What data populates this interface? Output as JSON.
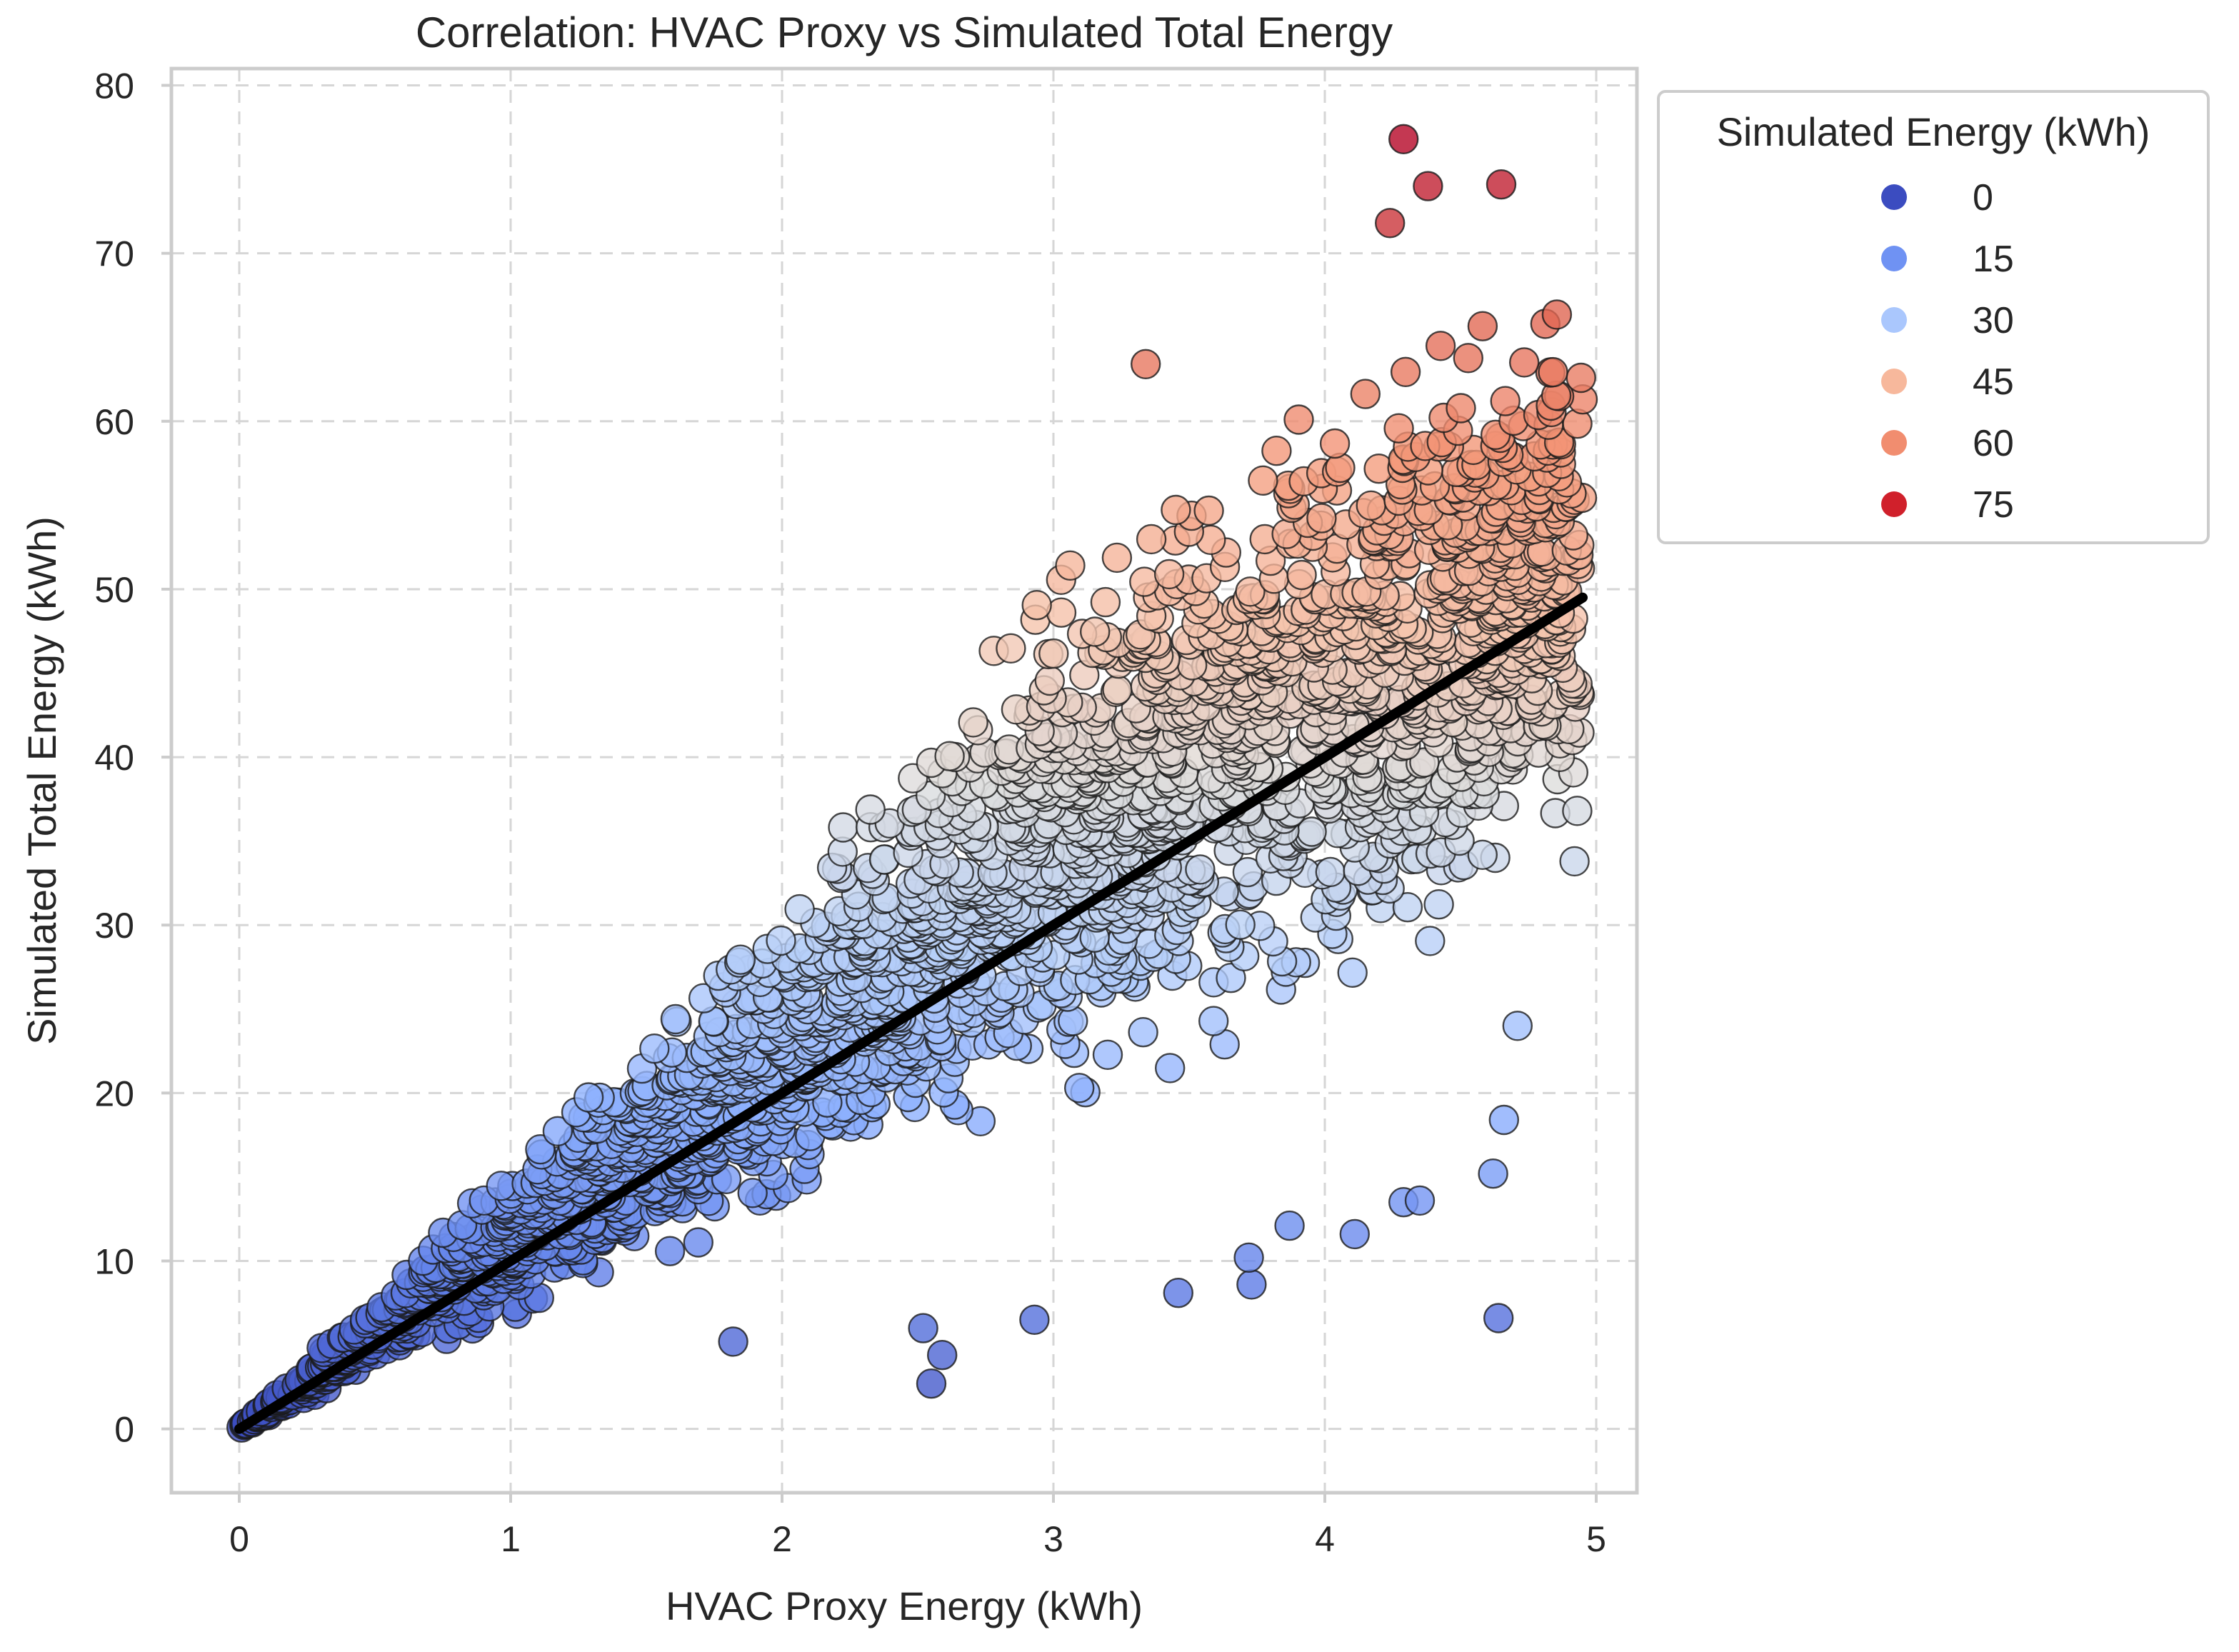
{
  "chart_data": {
    "type": "scatter",
    "title": "Correlation: HVAC Proxy vs Simulated Total Energy",
    "xlabel": "HVAC Proxy Energy (kWh)",
    "ylabel": "Simulated Total Energy (kWh)",
    "xlim": [
      -0.25,
      5.15
    ],
    "ylim": [
      -3.8,
      81
    ],
    "xticks": [
      0,
      1,
      2,
      3,
      4,
      5
    ],
    "yticks": [
      0,
      10,
      20,
      30,
      40,
      50,
      60,
      70,
      80
    ],
    "grid": true,
    "colormap": "coolwarm",
    "color_by": "Simulated Total Energy (kWh)",
    "color_range": [
      0,
      77
    ],
    "legend": {
      "title": "Simulated Energy (kWh)",
      "placement": "outside top-right",
      "entries": [
        {
          "label": "0",
          "color": "#3b4cc0"
        },
        {
          "label": "15",
          "color": "#6f92f3"
        },
        {
          "label": "30",
          "color": "#aac7fd"
        },
        {
          "label": "45",
          "color": "#f7b89c"
        },
        {
          "label": "60",
          "color": "#f18d6f"
        },
        {
          "label": "75",
          "color": "#d0202b"
        }
      ]
    },
    "trend_line": {
      "color": "#000000",
      "x": [
        0,
        4.95
      ],
      "y": [
        0,
        49.5
      ]
    },
    "cloud": {
      "description_points": 2600,
      "x_max": 4.95,
      "lower_slope_at_x": [
        [
          0,
          0
        ],
        [
          1,
          3.5
        ],
        [
          2,
          7
        ],
        [
          3,
          10.5
        ],
        [
          4,
          14
        ],
        [
          4.8,
          24
        ]
      ],
      "upper_slope_at_x": [
        [
          0,
          0
        ],
        [
          1,
          17
        ],
        [
          2,
          33
        ],
        [
          3,
          53
        ],
        [
          4,
          66
        ],
        [
          4.7,
          70
        ]
      ]
    },
    "series": [
      {
        "values": [
          {
            "x": 4.29,
            "y": 76.8
          },
          {
            "x": 4.65,
            "y": 74.1
          },
          {
            "x": 4.38,
            "y": 74.0
          },
          {
            "x": 4.24,
            "y": 71.8
          },
          {
            "x": 3.34,
            "y": 63.4
          },
          {
            "x": 4.95,
            "y": 61.3
          },
          {
            "x": 4.64,
            "y": 6.6
          },
          {
            "x": 2.55,
            "y": 2.7
          },
          {
            "x": 2.59,
            "y": 4.4
          },
          {
            "x": 2.52,
            "y": 6.0
          },
          {
            "x": 2.93,
            "y": 6.5
          },
          {
            "x": 1.82,
            "y": 5.2
          },
          {
            "x": 3.46,
            "y": 8.1
          },
          {
            "x": 3.73,
            "y": 8.6
          },
          {
            "x": 3.72,
            "y": 10.2
          },
          {
            "x": 4.11,
            "y": 11.6
          },
          {
            "x": 4.62,
            "y": 15.2
          },
          {
            "x": 4.66,
            "y": 18.4
          },
          {
            "x": 4.71,
            "y": 24.0
          },
          {
            "x": 4.92,
            "y": 33.8
          },
          {
            "x": 4.93,
            "y": 36.8
          },
          {
            "x": 3.87,
            "y": 12.1
          },
          {
            "x": 4.29,
            "y": 13.5
          },
          {
            "x": 4.35,
            "y": 13.6
          }
        ]
      }
    ]
  }
}
